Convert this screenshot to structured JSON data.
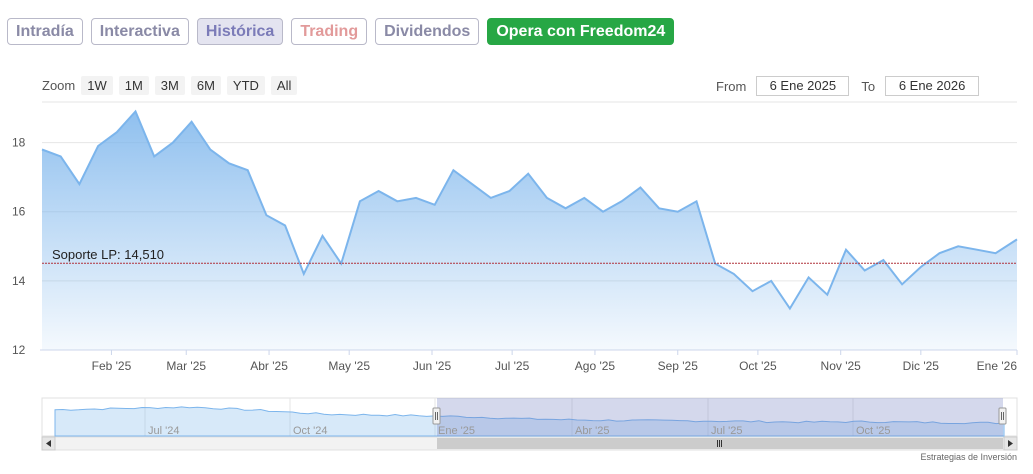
{
  "tabs": [
    {
      "label": "Intradía",
      "state": "default"
    },
    {
      "label": "Interactiva",
      "state": "default"
    },
    {
      "label": "Histórica",
      "state": "active"
    },
    {
      "label": "Trading",
      "state": "trading"
    },
    {
      "label": "Dividendos",
      "state": "default"
    },
    {
      "label": "Opera con Freedom24",
      "state": "cta"
    }
  ],
  "zoom": {
    "label": "Zoom",
    "buttons": [
      "1W",
      "1M",
      "3M",
      "6M",
      "YTD",
      "All"
    ]
  },
  "range": {
    "from_label": "From",
    "from_value": "6 Ene 2025",
    "to_label": "To",
    "to_value": "6 Ene 2026"
  },
  "colors": {
    "line": "#7cb5ec",
    "fill_top": "#7cb5ec",
    "support_line": "#b0323a",
    "cta": "#27a745",
    "active_tab": "#7b7bb8",
    "navigator_mask": "#6f7fc0"
  },
  "chart_data": {
    "type": "area",
    "ylim": [
      12,
      19
    ],
    "yticks": [
      12,
      14,
      16,
      18
    ],
    "x_tick_labels": [
      "Feb '25",
      "Mar '25",
      "Abr '25",
      "May '25",
      "Jun '25",
      "Jul '25",
      "Ago '25",
      "Sep '25",
      "Oct '25",
      "Nov '25",
      "Dic '25",
      "Ene '26"
    ],
    "x": [
      "2025-01-06",
      "2025-01-13",
      "2025-01-20",
      "2025-01-27",
      "2025-02-03",
      "2025-02-10",
      "2025-02-17",
      "2025-02-24",
      "2025-03-03",
      "2025-03-10",
      "2025-03-17",
      "2025-03-24",
      "2025-03-31",
      "2025-04-07",
      "2025-04-14",
      "2025-04-21",
      "2025-04-28",
      "2025-05-05",
      "2025-05-12",
      "2025-05-19",
      "2025-05-26",
      "2025-06-02",
      "2025-06-09",
      "2025-06-16",
      "2025-06-23",
      "2025-06-30",
      "2025-07-07",
      "2025-07-14",
      "2025-07-21",
      "2025-07-28",
      "2025-08-04",
      "2025-08-11",
      "2025-08-18",
      "2025-08-25",
      "2025-09-01",
      "2025-09-08",
      "2025-09-15",
      "2025-09-22",
      "2025-09-29",
      "2025-10-06",
      "2025-10-13",
      "2025-10-20",
      "2025-10-27",
      "2025-11-03",
      "2025-11-10",
      "2025-11-17",
      "2025-11-24",
      "2025-12-01",
      "2025-12-08",
      "2025-12-15",
      "2025-12-22",
      "2025-12-29",
      "2026-01-06"
    ],
    "series": [
      {
        "values": [
          17.8,
          17.6,
          16.8,
          17.9,
          18.3,
          18.9,
          17.6,
          18.0,
          18.6,
          17.8,
          17.4,
          17.2,
          15.9,
          15.6,
          14.2,
          15.3,
          14.5,
          16.3,
          16.6,
          16.3,
          16.4,
          16.2,
          17.2,
          16.8,
          16.4,
          16.6,
          17.1,
          16.4,
          16.1,
          16.4,
          16.0,
          16.3,
          16.7,
          16.1,
          16.0,
          16.3,
          14.5,
          14.2,
          13.7,
          14.0,
          13.2,
          14.1,
          13.6,
          14.9,
          14.3,
          14.6,
          13.9,
          14.4,
          14.8,
          15.0,
          14.9,
          14.8,
          15.2
        ]
      }
    ],
    "annotations": [
      {
        "label": "Soporte LP: 14,510",
        "value": 14.51
      }
    ],
    "navigator": {
      "x_tick_labels": [
        "Jul '24",
        "Oct '24",
        "Ene '25",
        "Abr '25",
        "Jul '25",
        "Oct '25"
      ]
    }
  },
  "credit": "Estrategias de Inversión"
}
